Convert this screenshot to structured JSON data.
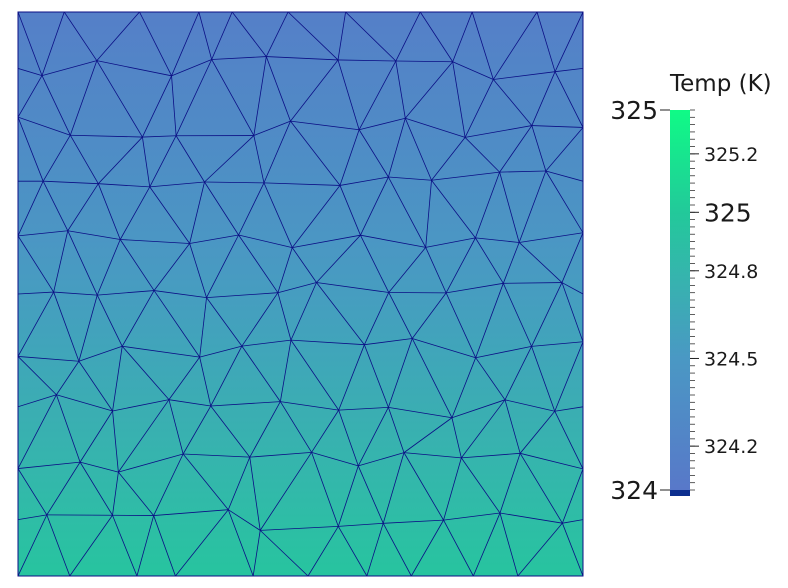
{
  "chart_data": {
    "type": "heatmap",
    "title": "",
    "xlabel": "",
    "ylabel": "",
    "grid": false,
    "legend": "right",
    "colorbar": {
      "title": "Temp (K)",
      "range": [
        324.05,
        325.35
      ],
      "range_labels": [
        "325",
        "324"
      ],
      "range_label_values": [
        325.35,
        324.05
      ],
      "major_ticks": [
        {
          "value": 325.2,
          "label": "325.2"
        },
        {
          "value": 325.0,
          "label": "325"
        },
        {
          "value": 324.8,
          "label": "324.8"
        },
        {
          "value": 324.5,
          "label": "324.5"
        },
        {
          "value": 324.2,
          "label": "324.2"
        }
      ],
      "below_range_color": "#0d2f8f",
      "colormap": [
        {
          "value": 324.05,
          "color": "#5878c9"
        },
        {
          "value": 324.5,
          "color": "#4a98c4"
        },
        {
          "value": 324.8,
          "color": "#34b6ac"
        },
        {
          "value": 325.0,
          "color": "#22c99a"
        },
        {
          "value": 325.35,
          "color": "#0ffb86"
        }
      ]
    },
    "field": {
      "variable": "Temp (K)",
      "direction": "vertical",
      "top_value": 324.15,
      "bottom_value": 324.95,
      "mesh": "triangular",
      "mesh_color": "#0b0f85"
    }
  }
}
